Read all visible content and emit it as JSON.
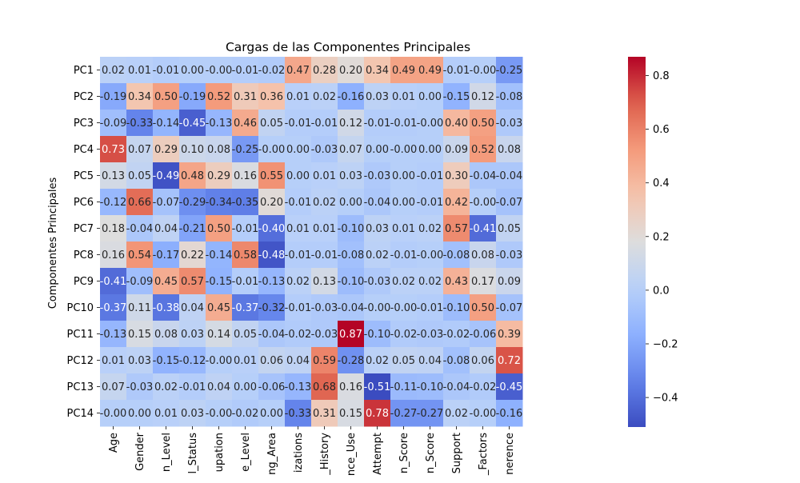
{
  "chart_data": {
    "type": "heatmap",
    "title": "Cargas de las Componentes Principales",
    "xlabel": "",
    "ylabel": "Componentes Principales",
    "x_tick_labels": [
      "Age",
      "Gender",
      "n_Level",
      "l_Status",
      "upation",
      "e_Level",
      "ng_Area",
      "izations",
      "_History",
      "nce_Use",
      "Attempt",
      "n_Score",
      "n_Score",
      "Support",
      "_Factors",
      "nerence"
    ],
    "y_tick_labels": [
      "PC1",
      "PC2",
      "PC3",
      "PC4",
      "PC5",
      "PC6",
      "PC7",
      "PC8",
      "PC9",
      "PC10",
      "PC11",
      "PC12",
      "PC13",
      "PC14"
    ],
    "values": [
      [
        0.02,
        0.01,
        -0.01,
        0.0,
        -0.0,
        -0.01,
        -0.02,
        0.47,
        0.28,
        0.2,
        0.34,
        0.49,
        0.49,
        -0.01,
        -0.0,
        -0.25
      ],
      [
        -0.19,
        0.34,
        0.5,
        -0.19,
        0.52,
        0.31,
        0.36,
        0.01,
        0.02,
        -0.16,
        0.03,
        0.01,
        0.0,
        -0.15,
        0.12,
        -0.08
      ],
      [
        -0.09,
        -0.33,
        -0.14,
        -0.45,
        -0.13,
        0.46,
        0.05,
        -0.01,
        -0.01,
        0.12,
        -0.01,
        -0.01,
        -0.0,
        0.4,
        0.5,
        -0.03
      ],
      [
        0.73,
        0.07,
        0.29,
        0.1,
        0.08,
        -0.25,
        -0.0,
        0.0,
        -0.03,
        0.07,
        0.0,
        -0.0,
        0.0,
        0.09,
        0.52,
        0.08
      ],
      [
        0.13,
        0.05,
        -0.49,
        0.48,
        0.29,
        0.16,
        0.55,
        0.0,
        0.01,
        0.03,
        -0.03,
        0.0,
        -0.01,
        0.3,
        -0.04,
        -0.04
      ],
      [
        -0.12,
        0.66,
        -0.07,
        -0.29,
        -0.34,
        -0.35,
        0.2,
        -0.01,
        0.02,
        0.0,
        -0.04,
        0.0,
        -0.01,
        0.42,
        -0.0,
        -0.07
      ],
      [
        0.18,
        -0.04,
        0.04,
        -0.21,
        0.5,
        -0.01,
        -0.4,
        0.01,
        0.01,
        -0.1,
        0.03,
        0.01,
        0.02,
        0.57,
        -0.41,
        0.05
      ],
      [
        0.16,
        0.54,
        -0.17,
        0.22,
        -0.14,
        0.58,
        -0.48,
        -0.01,
        -0.01,
        -0.08,
        0.02,
        -0.01,
        -0.0,
        -0.08,
        0.08,
        -0.03
      ],
      [
        -0.41,
        -0.09,
        0.45,
        0.57,
        -0.15,
        -0.01,
        -0.13,
        0.02,
        0.13,
        -0.1,
        -0.03,
        0.02,
        0.02,
        0.43,
        0.17,
        0.09
      ],
      [
        -0.37,
        0.11,
        -0.38,
        0.04,
        0.45,
        -0.37,
        -0.32,
        -0.01,
        -0.03,
        -0.04,
        -0.0,
        -0.0,
        -0.01,
        -0.1,
        0.5,
        -0.07
      ],
      [
        -0.13,
        0.15,
        0.08,
        0.03,
        0.14,
        0.05,
        -0.04,
        -0.02,
        -0.03,
        0.87,
        -0.1,
        -0.02,
        -0.03,
        -0.02,
        -0.06,
        0.39
      ],
      [
        0.01,
        0.03,
        -0.15,
        -0.12,
        -0.0,
        0.01,
        0.06,
        0.04,
        0.59,
        -0.28,
        0.02,
        0.05,
        0.04,
        -0.08,
        0.06,
        0.72
      ],
      [
        0.07,
        -0.03,
        0.02,
        -0.01,
        0.04,
        0.0,
        -0.06,
        -0.13,
        0.68,
        0.16,
        -0.51,
        -0.11,
        -0.1,
        -0.04,
        -0.02,
        -0.45
      ],
      [
        -0.0,
        0.0,
        0.01,
        0.03,
        -0.0,
        -0.02,
        0.0,
        -0.33,
        0.31,
        0.15,
        0.78,
        -0.27,
        -0.27,
        0.02,
        -0.0,
        -0.16
      ]
    ],
    "value_range": [
      -0.51,
      0.87
    ],
    "colormap": "coolwarm",
    "colorbar_ticks": [
      -0.4,
      -0.2,
      0.0,
      0.2,
      0.4,
      0.6,
      0.8
    ],
    "colorbar_tick_labels": [
      "−0.4",
      "−0.2",
      "0.0",
      "0.2",
      "0.4",
      "0.6",
      "0.8"
    ],
    "annotations": true,
    "grid": false,
    "legend": "colorbar-right"
  }
}
